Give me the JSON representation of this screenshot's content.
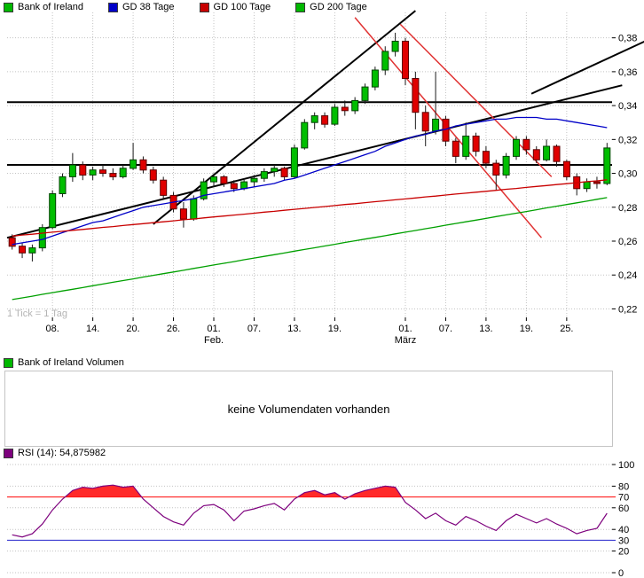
{
  "footnote": "1 Tick = 1 Tag",
  "volume_panel": {
    "legend": {
      "label": "Bank of Ireland Volumen",
      "color": "#00B800"
    },
    "message": "keine Volumendaten vorhanden"
  },
  "chart_data": [
    {
      "type": "candlestick",
      "title": "Bank of Ireland",
      "legend": [
        {
          "label": "Bank of Ireland",
          "color": "#00B800"
        },
        {
          "label": "GD 38 Tage",
          "color": "#0000C8"
        },
        {
          "label": "GD 100 Tage",
          "color": "#C80000"
        },
        {
          "label": "GD 200 Tage",
          "color": "#00B800"
        }
      ],
      "ylim": [
        0.215,
        0.395
      ],
      "price_ticks": [
        0.22,
        0.24,
        0.26,
        0.28,
        0.3,
        0.32,
        0.34,
        0.36,
        0.38
      ],
      "x_ticks": [
        {
          "day": 4,
          "label": "08."
        },
        {
          "day": 8,
          "label": "14."
        },
        {
          "day": 12,
          "label": "20."
        },
        {
          "day": 16,
          "label": "26."
        },
        {
          "day": 20,
          "label": "01.",
          "sub": "Feb."
        },
        {
          "day": 24,
          "label": "07."
        },
        {
          "day": 28,
          "label": "13."
        },
        {
          "day": 32,
          "label": "19."
        },
        {
          "day": 39,
          "label": "01.",
          "sub": "März"
        },
        {
          "day": 43,
          "label": "07."
        },
        {
          "day": 47,
          "label": "13."
        },
        {
          "day": 51,
          "label": "19."
        },
        {
          "day": 55,
          "label": "25."
        }
      ],
      "up_color": "#00BE00",
      "down_color": "#E00000",
      "candles": [
        [
          0.262,
          0.264,
          0.255,
          0.257
        ],
        [
          0.257,
          0.259,
          0.25,
          0.253
        ],
        [
          0.253,
          0.258,
          0.248,
          0.256
        ],
        [
          0.256,
          0.27,
          0.254,
          0.268
        ],
        [
          0.268,
          0.29,
          0.267,
          0.288
        ],
        [
          0.288,
          0.3,
          0.286,
          0.298
        ],
        [
          0.298,
          0.312,
          0.295,
          0.305
        ],
        [
          0.305,
          0.307,
          0.296,
          0.299
        ],
        [
          0.299,
          0.304,
          0.296,
          0.302
        ],
        [
          0.302,
          0.305,
          0.298,
          0.3
        ],
        [
          0.3,
          0.303,
          0.296,
          0.298
        ],
        [
          0.298,
          0.305,
          0.297,
          0.303
        ],
        [
          0.303,
          0.318,
          0.302,
          0.308
        ],
        [
          0.308,
          0.31,
          0.3,
          0.302
        ],
        [
          0.302,
          0.304,
          0.294,
          0.296
        ],
        [
          0.296,
          0.298,
          0.285,
          0.287
        ],
        [
          0.287,
          0.289,
          0.277,
          0.279
        ],
        [
          0.279,
          0.283,
          0.268,
          0.273
        ],
        [
          0.273,
          0.287,
          0.272,
          0.285
        ],
        [
          0.285,
          0.297,
          0.284,
          0.295
        ],
        [
          0.295,
          0.3,
          0.292,
          0.298
        ],
        [
          0.298,
          0.299,
          0.292,
          0.294
        ],
        [
          0.294,
          0.296,
          0.289,
          0.291
        ],
        [
          0.291,
          0.297,
          0.29,
          0.295
        ],
        [
          0.295,
          0.299,
          0.292,
          0.297
        ],
        [
          0.297,
          0.303,
          0.295,
          0.301
        ],
        [
          0.301,
          0.305,
          0.298,
          0.303
        ],
        [
          0.303,
          0.304,
          0.296,
          0.298
        ],
        [
          0.298,
          0.317,
          0.297,
          0.315
        ],
        [
          0.315,
          0.332,
          0.314,
          0.33
        ],
        [
          0.33,
          0.336,
          0.326,
          0.334
        ],
        [
          0.334,
          0.336,
          0.327,
          0.329
        ],
        [
          0.329,
          0.341,
          0.328,
          0.339
        ],
        [
          0.339,
          0.343,
          0.334,
          0.337
        ],
        [
          0.337,
          0.345,
          0.335,
          0.343
        ],
        [
          0.343,
          0.353,
          0.341,
          0.351
        ],
        [
          0.351,
          0.363,
          0.349,
          0.361
        ],
        [
          0.361,
          0.375,
          0.358,
          0.372
        ],
        [
          0.372,
          0.383,
          0.369,
          0.378
        ],
        [
          0.378,
          0.38,
          0.352,
          0.356
        ],
        [
          0.356,
          0.36,
          0.326,
          0.336
        ],
        [
          0.336,
          0.34,
          0.316,
          0.325
        ],
        [
          0.325,
          0.36,
          0.323,
          0.332
        ],
        [
          0.332,
          0.334,
          0.316,
          0.319
        ],
        [
          0.319,
          0.321,
          0.306,
          0.31
        ],
        [
          0.31,
          0.33,
          0.308,
          0.322
        ],
        [
          0.322,
          0.324,
          0.31,
          0.313
        ],
        [
          0.313,
          0.316,
          0.303,
          0.306
        ],
        [
          0.306,
          0.308,
          0.29,
          0.299
        ],
        [
          0.299,
          0.312,
          0.297,
          0.31
        ],
        [
          0.31,
          0.322,
          0.308,
          0.32
        ],
        [
          0.32,
          0.322,
          0.311,
          0.314
        ],
        [
          0.314,
          0.316,
          0.306,
          0.308
        ],
        [
          0.308,
          0.32,
          0.307,
          0.316
        ],
        [
          0.316,
          0.317,
          0.304,
          0.307
        ],
        [
          0.307,
          0.308,
          0.296,
          0.298
        ],
        [
          0.298,
          0.3,
          0.287,
          0.291
        ],
        [
          0.291,
          0.297,
          0.289,
          0.295
        ],
        [
          0.295,
          0.298,
          0.291,
          0.294
        ],
        [
          0.294,
          0.318,
          0.293,
          0.315
        ]
      ],
      "series": [
        {
          "name": "GD 38 Tage",
          "color": "#0000C8",
          "values": [
            0.258,
            0.259,
            0.26,
            0.261,
            0.263,
            0.265,
            0.267,
            0.269,
            0.271,
            0.272,
            0.274,
            0.276,
            0.278,
            0.28,
            0.281,
            0.282,
            0.283,
            0.284,
            0.285,
            0.287,
            0.288,
            0.289,
            0.29,
            0.291,
            0.292,
            0.293,
            0.294,
            0.296,
            0.297,
            0.299,
            0.301,
            0.303,
            0.305,
            0.307,
            0.309,
            0.311,
            0.313,
            0.316,
            0.318,
            0.32,
            0.322,
            0.323,
            0.325,
            0.326,
            0.328,
            0.329,
            0.33,
            0.331,
            0.332,
            0.332,
            0.333,
            0.333,
            0.333,
            0.332,
            0.332,
            0.331,
            0.33,
            0.329,
            0.328,
            0.327
          ]
        },
        {
          "name": "GD 100 Tage",
          "color": "#C80000",
          "values": [
            0.263,
            0.2636,
            0.2641,
            0.2647,
            0.2653,
            0.2658,
            0.2664,
            0.2669,
            0.2675,
            0.2681,
            0.2686,
            0.2692,
            0.2698,
            0.2703,
            0.2709,
            0.2714,
            0.272,
            0.2726,
            0.2731,
            0.2737,
            0.2743,
            0.2748,
            0.2754,
            0.2759,
            0.2765,
            0.2771,
            0.2776,
            0.2782,
            0.2788,
            0.2793,
            0.2799,
            0.2804,
            0.281,
            0.2816,
            0.2821,
            0.2827,
            0.2833,
            0.2838,
            0.2844,
            0.2849,
            0.2855,
            0.2861,
            0.2866,
            0.2872,
            0.2878,
            0.2883,
            0.2889,
            0.2894,
            0.29,
            0.2906,
            0.2911,
            0.2917,
            0.2923,
            0.2928,
            0.2934,
            0.2939,
            0.2945,
            0.2951,
            0.2956,
            0.2962
          ]
        },
        {
          "name": "GD 200 Tage",
          "color": "#00A000",
          "values": [
            0.2255,
            0.2265,
            0.2275,
            0.2286,
            0.2296,
            0.2306,
            0.2316,
            0.2326,
            0.2337,
            0.2347,
            0.2357,
            0.2367,
            0.2377,
            0.2388,
            0.2398,
            0.2408,
            0.2418,
            0.2428,
            0.2439,
            0.2449,
            0.2459,
            0.2469,
            0.2479,
            0.249,
            0.25,
            0.251,
            0.252,
            0.253,
            0.2541,
            0.2551,
            0.2561,
            0.2571,
            0.2581,
            0.2592,
            0.2602,
            0.2612,
            0.2622,
            0.2632,
            0.2643,
            0.2653,
            0.2663,
            0.2673,
            0.2683,
            0.2694,
            0.2704,
            0.2714,
            0.2724,
            0.2734,
            0.2745,
            0.2755,
            0.2765,
            0.2775,
            0.2785,
            0.2796,
            0.2806,
            0.2816,
            0.2826,
            0.2836,
            0.2847,
            0.2857
          ]
        }
      ],
      "hlines": [
        {
          "price": 0.342,
          "color": "#000000",
          "width": 2
        },
        {
          "price": 0.305,
          "color": "#000000",
          "width": 2
        }
      ],
      "trendlines": [
        {
          "x1": -0.5,
          "y1": 0.262,
          "x2": 60.5,
          "y2": 0.352,
          "color": "#000000",
          "width": 2
        },
        {
          "x1": 14,
          "y1": 0.27,
          "x2": 40,
          "y2": 0.396,
          "color": "#000000",
          "width": 2
        },
        {
          "x1": 51.5,
          "y1": 0.347,
          "x2": 63.5,
          "y2": 0.38,
          "color": "#000000",
          "width": 2
        },
        {
          "x1": 34,
          "y1": 0.392,
          "x2": 52.5,
          "y2": 0.262,
          "color": "#E03232",
          "width": 1.5
        },
        {
          "x1": 38.5,
          "y1": 0.388,
          "x2": 53.5,
          "y2": 0.298,
          "color": "#E03232",
          "width": 1.5
        }
      ]
    },
    {
      "type": "line",
      "title": "RSI (14)",
      "legend_label": "RSI (14): 54,875982",
      "legend_color": "#7D007D",
      "current_value": "54,875982",
      "ylim": [
        0,
        100
      ],
      "y_ticks": [
        0,
        20,
        40,
        60,
        80,
        100
      ],
      "levels": [
        {
          "value": 70,
          "color": "#FF0000"
        },
        {
          "value": 30,
          "color": "#2222CC"
        }
      ],
      "line_color": "#7D007D",
      "fill_above": {
        "level": 70,
        "color": "#FF2A2A"
      },
      "values": [
        35,
        33,
        36,
        45,
        58,
        68,
        76,
        79,
        78,
        80,
        81,
        79,
        80,
        68,
        60,
        52,
        47,
        44,
        55,
        62,
        63,
        58,
        48,
        57,
        59,
        62,
        64,
        58,
        68,
        74,
        76,
        72,
        74,
        68,
        73,
        76,
        78,
        80,
        79,
        65,
        58,
        50,
        55,
        48,
        44,
        52,
        48,
        43,
        39,
        48,
        54,
        50,
        46,
        50,
        45,
        41,
        36,
        39,
        41,
        54.88
      ]
    }
  ]
}
